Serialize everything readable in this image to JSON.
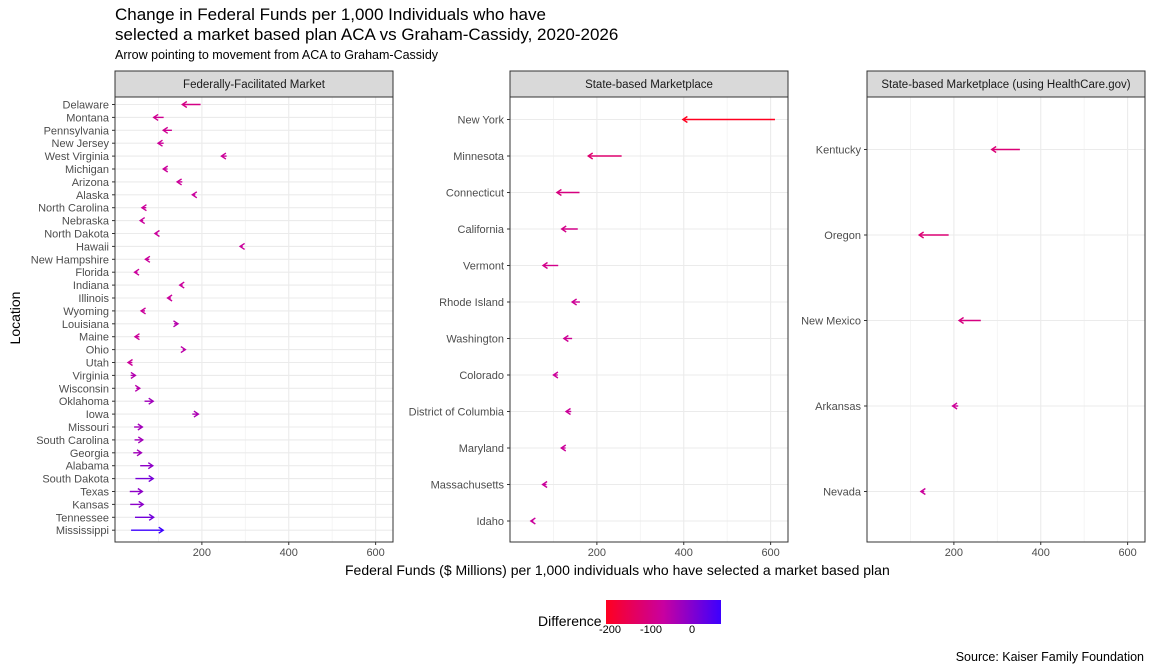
{
  "title": "Change in Federal Funds per 1,000 Individuals who have\nselected a market based plan ACA vs Graham-Cassidy, 2020-2026",
  "subtitle": "Arrow pointing to movement from ACA to Graham-Cassidy",
  "ylabel": "Location",
  "xlabel": "Federal Funds ($ Millions) per 1,000 individuals who have selected a market based plan",
  "source": "Source: Kaiser Family Foundation",
  "legend": {
    "title": "Difference",
    "ticks": [
      "-200",
      "-100",
      "0"
    ],
    "low_color": "#ff0020",
    "high_color": "#3c00ff"
  },
  "chart_data": [
    {
      "type": "arrow-dot",
      "panel": "Federally-Facilitated Market",
      "xlim": [
        0,
        640
      ],
      "xticks": [
        200,
        400,
        600
      ],
      "categories": [
        "Delaware",
        "Montana",
        "Pennsylvania",
        "New Jersey",
        "West Virginia",
        "Michigan",
        "Arizona",
        "Alaska",
        "North Carolina",
        "Nebraska",
        "North Dakota",
        "Hawaii",
        "New Hampshire",
        "Florida",
        "Indiana",
        "Illinois",
        "Wyoming",
        "Louisiana",
        "Maine",
        "Ohio",
        "Utah",
        "Virginia",
        "Wisconsin",
        "Oklahoma",
        "Iowa",
        "Missouri",
        "South Carolina",
        "Georgia",
        "Alabama",
        "South Dakota",
        "Texas",
        "Kansas",
        "Tennessee",
        "Mississippi"
      ],
      "aca": [
        197,
        112,
        131,
        112,
        257,
        121,
        155,
        185,
        72,
        65,
        98,
        294,
        79,
        52,
        156,
        129,
        69,
        136,
        56,
        156,
        40,
        36,
        49,
        68,
        178,
        44,
        45,
        42,
        58,
        47,
        34,
        35,
        46,
        37
      ],
      "graham_cassidy": [
        155,
        89,
        111,
        99,
        245,
        111,
        143,
        178,
        62,
        58,
        92,
        288,
        70,
        45,
        149,
        121,
        60,
        145,
        46,
        162,
        30,
        47,
        57,
        88,
        192,
        63,
        64,
        61,
        87,
        88,
        63,
        65,
        89,
        111
      ]
    },
    {
      "type": "arrow-dot",
      "panel": "State-based Marketplace",
      "xlim": [
        0,
        640
      ],
      "xticks": [
        200,
        400,
        600
      ],
      "categories": [
        "New York",
        "Minnesota",
        "Connecticut",
        "California",
        "Vermont",
        "Rhode Island",
        "Washington",
        "Colorado",
        "District of Columbia",
        "Maryland",
        "Massachusetts",
        "Idaho"
      ],
      "aca": [
        610,
        257,
        160,
        156,
        111,
        161,
        143,
        110,
        141,
        128,
        84,
        54
      ],
      "graham_cassidy": [
        398,
        180,
        108,
        119,
        76,
        143,
        124,
        100,
        129,
        118,
        75,
        48
      ]
    },
    {
      "type": "arrow-dot",
      "panel": "State-based Marketplace (using HealthCare.gov)",
      "xlim": [
        0,
        640
      ],
      "xticks": [
        200,
        400,
        600
      ],
      "categories": [
        "Kentucky",
        "Oregon",
        "New Mexico",
        "Arkansas",
        "Nevada"
      ],
      "aca": [
        352,
        188,
        262,
        210,
        132
      ],
      "graham_cassidy": [
        287,
        120,
        212,
        197,
        124
      ]
    }
  ]
}
